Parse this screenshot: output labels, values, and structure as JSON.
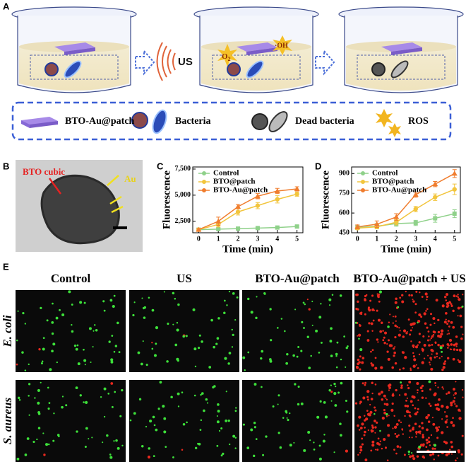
{
  "panel_labels": [
    "A",
    "B",
    "C",
    "D",
    "E"
  ],
  "panel_a": {
    "us_label": "US",
    "o2_label": "O",
    "o2_sub": "2",
    "oh_label": "·OH",
    "legend": [
      "BTO-Au@patch",
      "Bacteria",
      "Dead bacteria",
      "ROS"
    ]
  },
  "panel_b": {
    "labels": [
      "BTO cubic",
      "Au"
    ]
  },
  "chart_data": [
    {
      "type": "line",
      "xlabel": "Time (min)",
      "ylabel": "Fluorescence",
      "x": [
        0,
        1,
        2,
        3,
        4,
        5
      ],
      "xlim": [
        -0.3,
        5.3
      ],
      "xticks": [
        0,
        1,
        2,
        3,
        4,
        5
      ],
      "ylim": [
        1400,
        7700
      ],
      "yticks": [
        {
          "value": 2500,
          "label": "2,500"
        },
        {
          "value": 5000,
          "label": "5,000"
        },
        {
          "value": 7500,
          "label": "7,500"
        }
      ],
      "series": [
        {
          "name": "Control",
          "color": "#8fd18a",
          "values": [
            1700,
            1750,
            1800,
            1850,
            1900,
            2000
          ],
          "errors": [
            80,
            80,
            80,
            80,
            80,
            100
          ]
        },
        {
          "name": "BTO@patch",
          "color": "#f2c53d",
          "values": [
            1700,
            2200,
            3400,
            4000,
            4600,
            5100
          ],
          "errors": [
            100,
            250,
            300,
            300,
            350,
            200
          ]
        },
        {
          "name": "BTO-Au@patch",
          "color": "#f07d2e",
          "values": [
            1700,
            2500,
            3900,
            4900,
            5400,
            5600
          ],
          "errors": [
            100,
            400,
            200,
            250,
            250,
            200
          ]
        }
      ]
    },
    {
      "type": "line",
      "xlabel": "Time (min)",
      "ylabel": "Fluorescence",
      "x": [
        0,
        1,
        2,
        3,
        4,
        5
      ],
      "xlim": [
        -0.3,
        5.3
      ],
      "xticks": [
        0,
        1,
        2,
        3,
        4,
        5
      ],
      "ylim": [
        450,
        950
      ],
      "yticks": [
        450,
        600,
        750,
        900
      ],
      "series": [
        {
          "name": "Control",
          "color": "#8fd18a",
          "values": [
            490,
            500,
            520,
            525,
            560,
            595
          ],
          "errors": [
            15,
            20,
            20,
            20,
            30,
            30
          ]
        },
        {
          "name": "BTO@patch",
          "color": "#f2c53d",
          "values": [
            485,
            495,
            530,
            630,
            720,
            780
          ],
          "errors": [
            10,
            15,
            20,
            20,
            25,
            40
          ]
        },
        {
          "name": "BTO-Au@patch",
          "color": "#f07d2e",
          "values": [
            495,
            515,
            570,
            740,
            820,
            900
          ],
          "errors": [
            15,
            25,
            25,
            20,
            20,
            30
          ]
        }
      ]
    }
  ],
  "panel_e": {
    "columns": [
      "Control",
      "US",
      "BTO-Au@patch",
      "BTO-Au@patch + US"
    ],
    "rows": [
      "E. coli",
      "S. aureus"
    ]
  }
}
